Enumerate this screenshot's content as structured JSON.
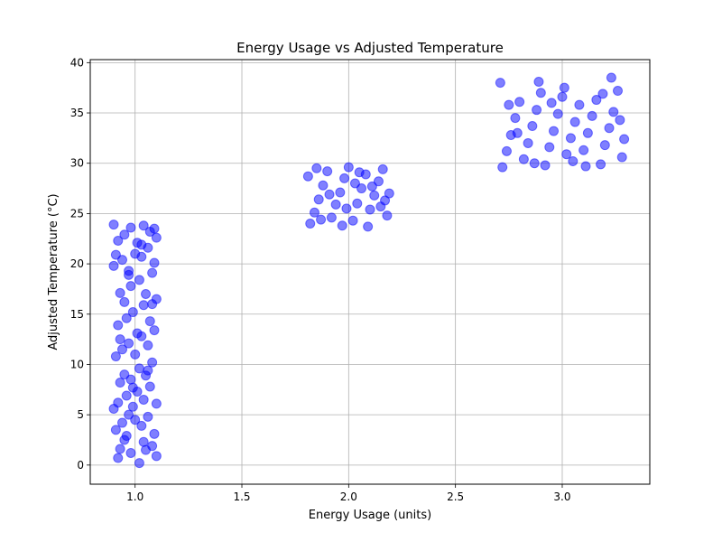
{
  "chart_data": {
    "type": "scatter",
    "title": "Energy Usage vs Adjusted Temperature",
    "xlabel": "Energy Usage (units)",
    "ylabel": "Adjusted Temperature (°C)",
    "xlim": [
      0.79,
      3.41
    ],
    "ylim": [
      -1.9,
      40.3
    ],
    "x_ticks": [
      1.0,
      1.5,
      2.0,
      2.5,
      3.0
    ],
    "x_tick_labels": [
      "1.0",
      "1.5",
      "2.0",
      "2.5",
      "3.0"
    ],
    "y_ticks": [
      0,
      5,
      10,
      15,
      20,
      25,
      30,
      35,
      40
    ],
    "y_tick_labels": [
      "0",
      "5",
      "10",
      "15",
      "20",
      "25",
      "30",
      "35",
      "40"
    ],
    "grid": true,
    "marker_color": "#0000ff",
    "marker_alpha": 0.5,
    "series": [
      {
        "points": [
          [
            0.92,
            0.7
          ],
          [
            0.93,
            1.6
          ],
          [
            0.95,
            2.5
          ],
          [
            0.98,
            1.2
          ],
          [
            1.02,
            0.2
          ],
          [
            1.05,
            1.5
          ],
          [
            1.08,
            1.9
          ],
          [
            1.1,
            0.9
          ],
          [
            0.91,
            3.5
          ],
          [
            0.94,
            4.2
          ],
          [
            0.97,
            5.0
          ],
          [
            1.0,
            4.5
          ],
          [
            1.03,
            3.9
          ],
          [
            1.06,
            4.8
          ],
          [
            1.09,
            3.1
          ],
          [
            0.9,
            5.6
          ],
          [
            0.92,
            6.2
          ],
          [
            0.96,
            6.9
          ],
          [
            0.99,
            5.8
          ],
          [
            1.01,
            7.3
          ],
          [
            1.04,
            6.5
          ],
          [
            1.07,
            7.8
          ],
          [
            1.1,
            6.1
          ],
          [
            0.93,
            8.2
          ],
          [
            0.95,
            9.0
          ],
          [
            0.98,
            8.5
          ],
          [
            1.02,
            9.6
          ],
          [
            1.05,
            8.9
          ],
          [
            1.08,
            10.2
          ],
          [
            0.91,
            10.8
          ],
          [
            0.94,
            11.5
          ],
          [
            0.97,
            12.1
          ],
          [
            1.0,
            11.0
          ],
          [
            1.03,
            12.8
          ],
          [
            1.06,
            11.9
          ],
          [
            1.09,
            13.4
          ],
          [
            0.92,
            13.9
          ],
          [
            0.96,
            14.6
          ],
          [
            0.99,
            15.2
          ],
          [
            1.01,
            13.1
          ],
          [
            1.04,
            15.9
          ],
          [
            1.07,
            14.3
          ],
          [
            1.1,
            16.5
          ],
          [
            0.93,
            17.1
          ],
          [
            0.95,
            16.2
          ],
          [
            0.98,
            17.8
          ],
          [
            1.02,
            18.4
          ],
          [
            1.05,
            17.0
          ],
          [
            1.08,
            19.1
          ],
          [
            0.9,
            19.8
          ],
          [
            0.94,
            20.4
          ],
          [
            0.97,
            19.3
          ],
          [
            1.0,
            21.0
          ],
          [
            1.03,
            20.7
          ],
          [
            1.06,
            21.6
          ],
          [
            1.09,
            20.1
          ],
          [
            0.92,
            22.3
          ],
          [
            0.95,
            22.9
          ],
          [
            0.98,
            23.6
          ],
          [
            1.01,
            22.1
          ],
          [
            1.04,
            23.8
          ],
          [
            1.07,
            23.2
          ],
          [
            1.1,
            22.6
          ],
          [
            0.91,
            20.9
          ],
          [
            0.96,
            2.9
          ],
          [
            1.04,
            2.3
          ],
          [
            0.99,
            7.7
          ],
          [
            1.06,
            9.4
          ],
          [
            0.93,
            12.5
          ],
          [
            1.08,
            16.0
          ],
          [
            0.97,
            18.9
          ],
          [
            1.03,
            21.9
          ],
          [
            0.9,
            23.9
          ],
          [
            1.09,
            23.5
          ],
          [
            1.82,
            24.0
          ],
          [
            1.84,
            25.1
          ],
          [
            1.86,
            26.4
          ],
          [
            1.88,
            27.8
          ],
          [
            1.9,
            29.2
          ],
          [
            1.92,
            24.6
          ],
          [
            1.94,
            25.9
          ],
          [
            1.96,
            27.1
          ],
          [
            1.98,
            28.5
          ],
          [
            2.0,
            29.6
          ],
          [
            2.02,
            24.3
          ],
          [
            2.04,
            26.0
          ],
          [
            2.06,
            27.5
          ],
          [
            2.08,
            28.9
          ],
          [
            2.1,
            25.4
          ],
          [
            2.12,
            26.8
          ],
          [
            2.14,
            28.2
          ],
          [
            2.16,
            29.4
          ],
          [
            2.18,
            24.8
          ],
          [
            2.19,
            27.0
          ],
          [
            1.81,
            28.7
          ],
          [
            1.85,
            29.5
          ],
          [
            1.91,
            26.9
          ],
          [
            1.97,
            23.8
          ],
          [
            2.03,
            28.0
          ],
          [
            2.09,
            23.7
          ],
          [
            2.15,
            25.7
          ],
          [
            2.17,
            26.3
          ],
          [
            1.87,
            24.4
          ],
          [
            1.99,
            25.5
          ],
          [
            2.05,
            29.1
          ],
          [
            2.11,
            27.7
          ],
          [
            2.72,
            29.6
          ],
          [
            2.74,
            31.2
          ],
          [
            2.76,
            32.8
          ],
          [
            2.78,
            34.5
          ],
          [
            2.8,
            36.1
          ],
          [
            2.82,
            30.4
          ],
          [
            2.84,
            32.0
          ],
          [
            2.86,
            33.7
          ],
          [
            2.88,
            35.3
          ],
          [
            2.9,
            37.0
          ],
          [
            2.92,
            29.8
          ],
          [
            2.94,
            31.6
          ],
          [
            2.96,
            33.2
          ],
          [
            2.98,
            34.9
          ],
          [
            3.0,
            36.6
          ],
          [
            3.02,
            30.9
          ],
          [
            3.04,
            32.5
          ],
          [
            3.06,
            34.1
          ],
          [
            3.08,
            35.8
          ],
          [
            3.1,
            31.3
          ],
          [
            3.12,
            33.0
          ],
          [
            3.14,
            34.7
          ],
          [
            3.16,
            36.3
          ],
          [
            3.18,
            29.9
          ],
          [
            3.2,
            31.8
          ],
          [
            3.22,
            33.5
          ],
          [
            3.24,
            35.1
          ],
          [
            3.26,
            37.2
          ],
          [
            3.28,
            30.6
          ],
          [
            3.29,
            32.4
          ],
          [
            2.71,
            38.0
          ],
          [
            2.89,
            38.1
          ],
          [
            3.23,
            38.5
          ],
          [
            2.75,
            35.8
          ],
          [
            2.87,
            30.0
          ],
          [
            3.01,
            37.5
          ],
          [
            3.11,
            29.7
          ],
          [
            3.27,
            34.3
          ],
          [
            2.79,
            33.0
          ],
          [
            2.95,
            36.0
          ],
          [
            3.05,
            30.2
          ],
          [
            3.19,
            36.9
          ]
        ]
      }
    ]
  }
}
